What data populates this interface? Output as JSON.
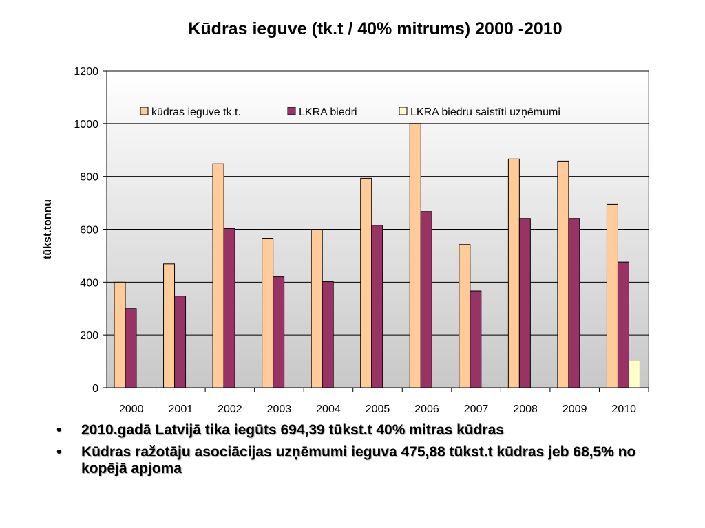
{
  "colors": {
    "series_0": "#FFCC99",
    "series_1": "#993366",
    "series_2": "#FFFFCC",
    "plot_bg_top": "#FFFFFF",
    "plot_bg_bottom": "#C8C8C8"
  },
  "chart_data": {
    "type": "bar",
    "title": "Kūdras ieguve (tk.t / 40% mitrums) 2000 -2010",
    "xlabel": "",
    "ylabel": "tūkst.tonnu",
    "ylim": [
      0,
      1200
    ],
    "yticks": [
      0,
      200,
      400,
      600,
      800,
      1000,
      1200
    ],
    "grid": true,
    "legend_position": "top",
    "categories": [
      "2000",
      "2001",
      "2002",
      "2003",
      "2004",
      "2005",
      "2006",
      "2007",
      "2008",
      "2009",
      "2010"
    ],
    "series": [
      {
        "name": "kūdras ieguve tk.t.",
        "values": [
          400,
          469,
          848,
          566,
          598,
          793,
          1000,
          542,
          866,
          858,
          694
        ]
      },
      {
        "name": "LKRA biedri",
        "values": [
          300,
          347,
          603,
          420,
          402,
          615,
          667,
          367,
          641,
          641,
          476
        ]
      },
      {
        "name": "LKRA biedru saistīti uzņēmumi",
        "values": [
          null,
          null,
          null,
          null,
          null,
          null,
          null,
          null,
          null,
          null,
          105
        ]
      }
    ]
  },
  "bullets": [
    "2010.gadā Latvijā tika iegūts 694,39 tūkst.t 40% mitras kūdras",
    "Kūdras ražotāju asociācijas uzņēmumi ieguva 475,88 tūkst.t kūdras jeb 68,5% no kopējā apjoma"
  ]
}
